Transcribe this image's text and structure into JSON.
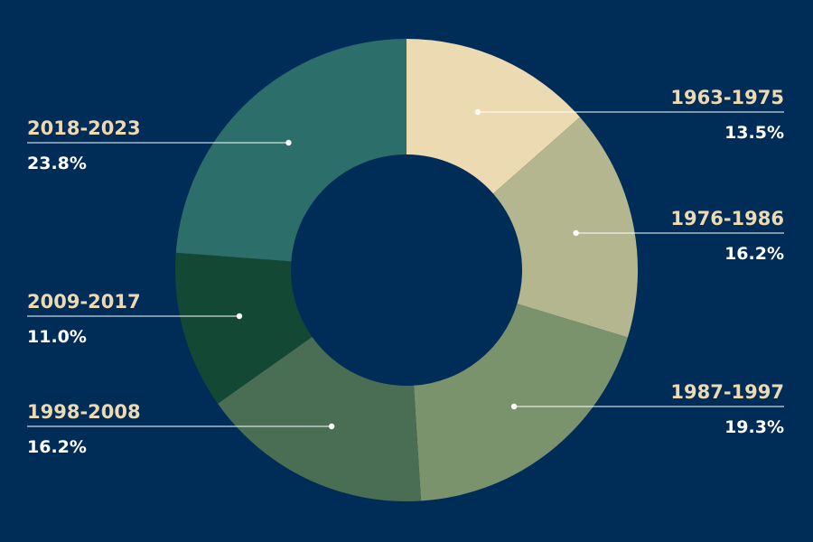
{
  "colors": {
    "background": "#002d57",
    "label_text": "#eddab2",
    "value_text": "#ffffff",
    "leader_line": "#ffffff"
  },
  "chart_data": {
    "type": "pie",
    "style": "donut",
    "start_angle_deg": 0,
    "direction": "clockwise",
    "legend": "none",
    "slices": [
      {
        "label": "1963-1975",
        "value": 13.5,
        "display": "13.5%",
        "color": "#ecdab2",
        "side": "right"
      },
      {
        "label": "1976-1986",
        "value": 16.2,
        "display": "16.2%",
        "color": "#b3b68f",
        "side": "right"
      },
      {
        "label": "1987-1997",
        "value": 19.3,
        "display": "19.3%",
        "color": "#7a936d",
        "side": "right"
      },
      {
        "label": "1998-2008",
        "value": 16.2,
        "display": "16.2%",
        "color": "#4a6e53",
        "side": "left"
      },
      {
        "label": "2009-2017",
        "value": 11.0,
        "display": "11.0%",
        "color": "#134834",
        "side": "left"
      },
      {
        "label": "2018-2023",
        "value": 23.8,
        "display": "23.8%",
        "color": "#2c6e6a",
        "side": "left"
      }
    ]
  }
}
